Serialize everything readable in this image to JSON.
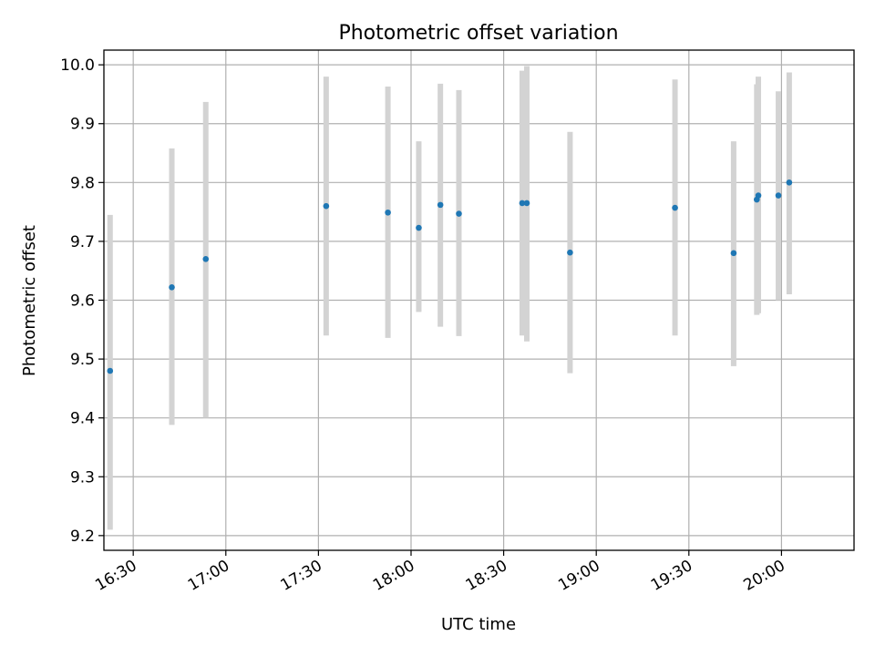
{
  "chart_data": {
    "type": "scatter",
    "title": "Photometric offset variation",
    "xlabel": "UTC time",
    "ylabel": "Photometric offset",
    "x_ticks": [
      "16:30",
      "17:00",
      "17:30",
      "18:00",
      "18:30",
      "19:00",
      "19:30",
      "20:00"
    ],
    "y_ticks": [
      "9.2",
      "9.3",
      "9.4",
      "9.5",
      "9.6",
      "9.7",
      "9.8",
      "9.9",
      "10.0"
    ],
    "xlim": [
      "16:20:30",
      "20:23:30"
    ],
    "ylim": [
      9.175,
      10.025
    ],
    "grid": true,
    "colors": {
      "points": "#1f77b4",
      "errorbars": "#d3d3d3"
    },
    "points": [
      {
        "x": "16:22:30",
        "y": 9.48,
        "err_low": 9.21,
        "err_high": 9.745
      },
      {
        "x": "16:42:30",
        "y": 9.622,
        "err_low": 9.388,
        "err_high": 9.858
      },
      {
        "x": "16:53:30",
        "y": 9.67,
        "err_low": 9.4,
        "err_high": 9.937
      },
      {
        "x": "17:32:30",
        "y": 9.76,
        "err_low": 9.54,
        "err_high": 9.98
      },
      {
        "x": "17:52:30",
        "y": 9.749,
        "err_low": 9.536,
        "err_high": 9.963
      },
      {
        "x": "18:02:30",
        "y": 9.723,
        "err_low": 9.58,
        "err_high": 9.87
      },
      {
        "x": "18:09:30",
        "y": 9.762,
        "err_low": 9.555,
        "err_high": 9.968
      },
      {
        "x": "18:15:30",
        "y": 9.747,
        "err_low": 9.539,
        "err_high": 9.957
      },
      {
        "x": "18:36:00",
        "y": 9.765,
        "err_low": 9.54,
        "err_high": 9.99
      },
      {
        "x": "18:37:30",
        "y": 9.765,
        "err_low": 9.53,
        "err_high": 9.998
      },
      {
        "x": "18:51:30",
        "y": 9.681,
        "err_low": 9.476,
        "err_high": 9.886
      },
      {
        "x": "19:25:30",
        "y": 9.757,
        "err_low": 9.54,
        "err_high": 9.975
      },
      {
        "x": "19:44:30",
        "y": 9.68,
        "err_low": 9.488,
        "err_high": 9.87
      },
      {
        "x": "19:52:00",
        "y": 9.771,
        "err_low": 9.575,
        "err_high": 9.967
      },
      {
        "x": "19:52:30",
        "y": 9.778,
        "err_low": 9.578,
        "err_high": 9.98
      },
      {
        "x": "19:59:00",
        "y": 9.778,
        "err_low": 9.6,
        "err_high": 9.955
      },
      {
        "x": "20:02:30",
        "y": 9.8,
        "err_low": 9.61,
        "err_high": 9.987
      }
    ]
  }
}
